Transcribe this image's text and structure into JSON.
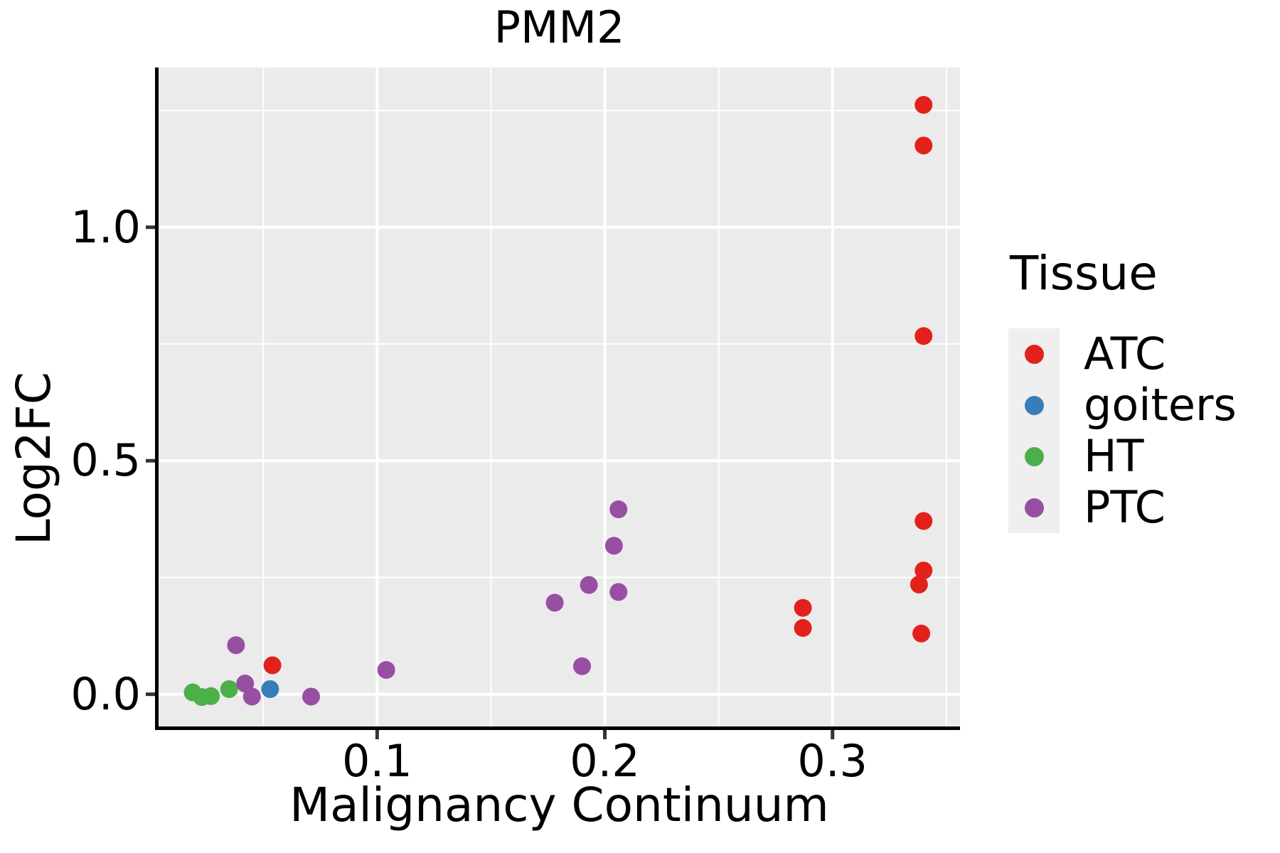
{
  "chart_data": {
    "type": "scatter",
    "title": "PMM2",
    "xlabel": "Malignancy Continuum",
    "ylabel": "Log2FC",
    "xlim": [
      0.004,
      0.356
    ],
    "ylim": [
      -0.069,
      1.342
    ],
    "grid": true,
    "xticks": {
      "major": [
        0.1,
        0.2,
        0.3
      ],
      "minor": [
        0.05,
        0.15,
        0.25,
        0.35
      ],
      "labels": [
        "0.1",
        "0.2",
        "0.3"
      ]
    },
    "yticks": {
      "major": [
        0.0,
        0.5,
        1.0
      ],
      "minor": [
        0.25,
        0.75,
        1.25
      ],
      "labels": [
        "0.0",
        "0.5",
        "1.0"
      ]
    },
    "legend": {
      "title": "Tissue",
      "position": "right",
      "items": [
        {
          "label": "ATC",
          "color": "#E3211C"
        },
        {
          "label": "goiters",
          "color": "#377EB8"
        },
        {
          "label": "HT",
          "color": "#4DAF4A"
        },
        {
          "label": "PTC",
          "color": "#984EA3"
        }
      ]
    },
    "series": [
      {
        "name": "HT",
        "color": "#4DAF4A",
        "points": [
          [
            0.019,
            0.004
          ],
          [
            0.023,
            -0.006
          ],
          [
            0.027,
            -0.004
          ],
          [
            0.035,
            0.011
          ]
        ]
      },
      {
        "name": "PTC",
        "color": "#984EA3",
        "points": [
          [
            0.038,
            0.105
          ],
          [
            0.042,
            0.023
          ],
          [
            0.045,
            -0.005
          ],
          [
            0.071,
            -0.005
          ],
          [
            0.104,
            0.052
          ],
          [
            0.178,
            0.196
          ],
          [
            0.19,
            0.06
          ],
          [
            0.193,
            0.234
          ],
          [
            0.204,
            0.318
          ],
          [
            0.206,
            0.396
          ],
          [
            0.206,
            0.219
          ]
        ]
      },
      {
        "name": "goiters",
        "color": "#377EB8",
        "points": [
          [
            0.053,
            0.011
          ]
        ]
      },
      {
        "name": "ATC",
        "color": "#E3211C",
        "points": [
          [
            0.054,
            0.062
          ],
          [
            0.287,
            0.185
          ],
          [
            0.287,
            0.142
          ],
          [
            0.338,
            0.235
          ],
          [
            0.339,
            0.13
          ],
          [
            0.34,
            0.265
          ],
          [
            0.34,
            0.371
          ],
          [
            0.34,
            0.767
          ],
          [
            0.34,
            1.175
          ],
          [
            0.34,
            1.262
          ]
        ]
      }
    ],
    "styles": {
      "panel_bg": "#EBEBEB",
      "grid_color": "#FFFFFF",
      "spine_color": "#000000",
      "tick_color": "#333333",
      "text_color": "#000000",
      "legend_key_bg": "#EFEFEF",
      "point_radius": 12.5
    }
  }
}
